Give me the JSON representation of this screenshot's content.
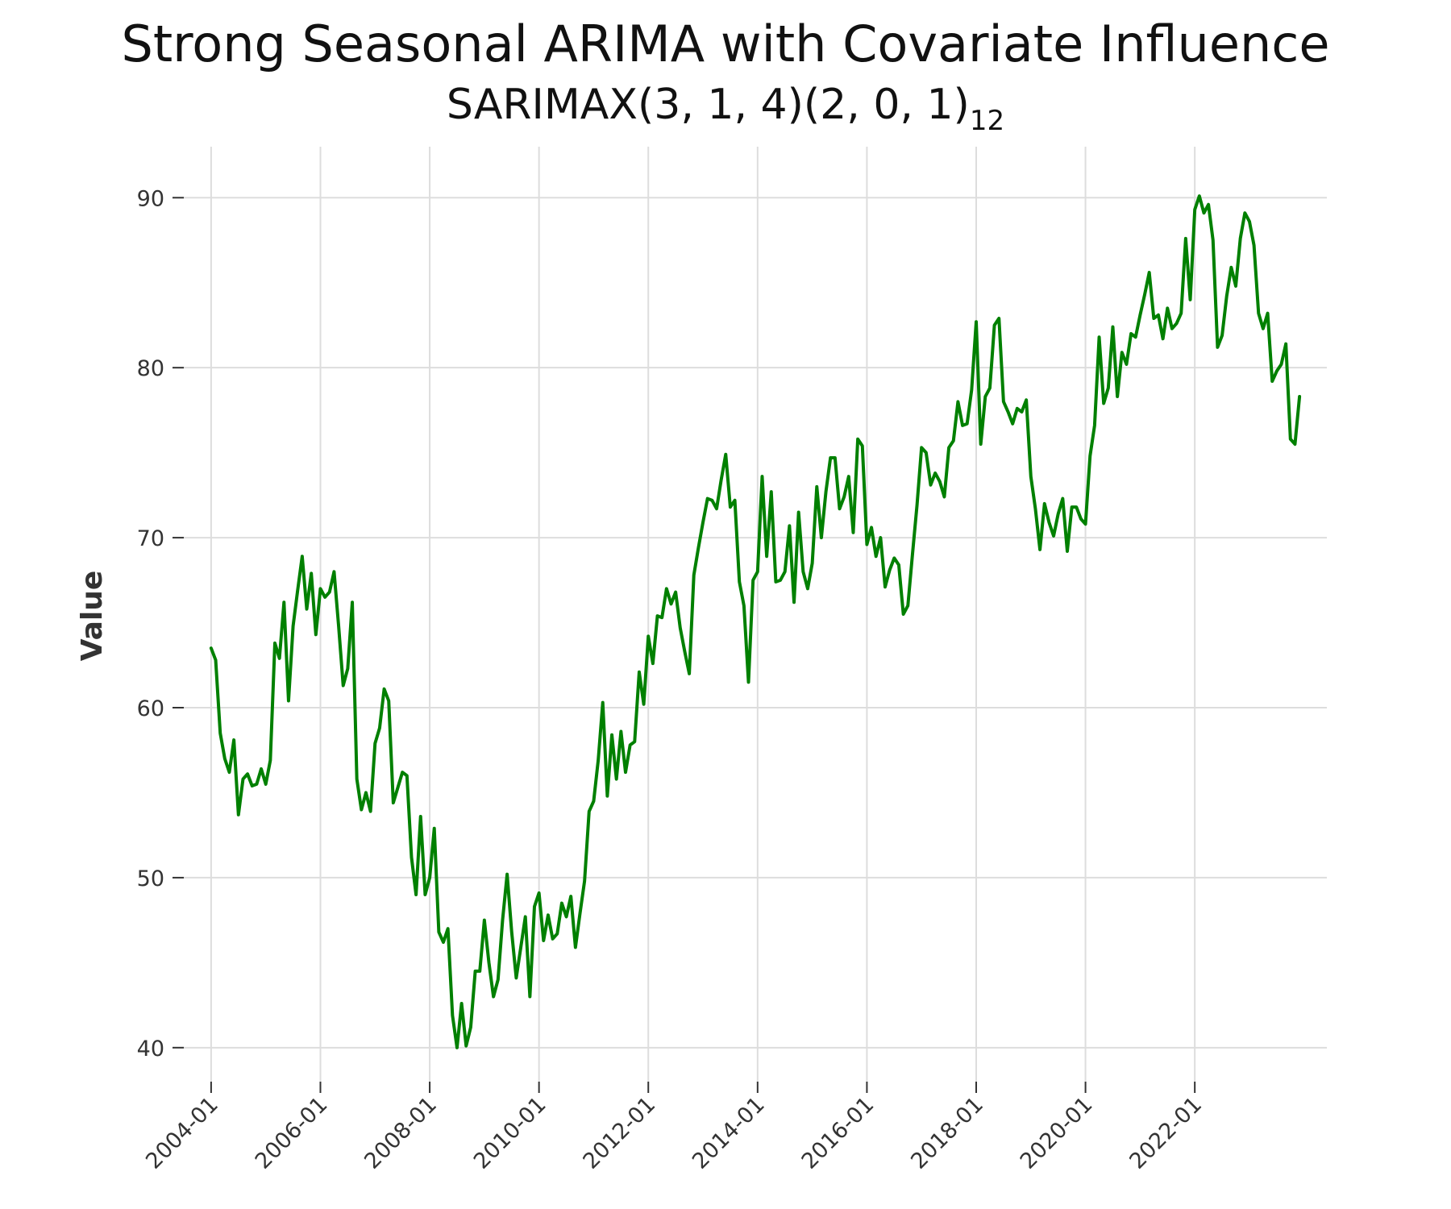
{
  "chart_data": {
    "type": "line",
    "title": "Strong Seasonal ARIMA with Covariate Influence",
    "subtitle_main": "SARIMAX(3, 1, 4)(2, 0, 1)",
    "subtitle_sub": "12",
    "xlabel": "",
    "ylabel": "Value",
    "ylim": [
      38,
      93
    ],
    "xlim": [
      "2003-07",
      "2024-06"
    ],
    "grid": true,
    "line_color": "#008000",
    "yticks": [
      40,
      50,
      60,
      70,
      80,
      90
    ],
    "xticks": [
      "2004-01",
      "2006-01",
      "2008-01",
      "2010-01",
      "2012-01",
      "2014-01",
      "2016-01",
      "2018-01",
      "2020-01",
      "2022-01"
    ],
    "x_start": "2004-01",
    "x_freq": "monthly",
    "series": [
      {
        "values": [
          63.5,
          62.8,
          58.5,
          57.0,
          56.2,
          58.1,
          53.7,
          55.8,
          56.1,
          55.4,
          55.5,
          56.4,
          55.5,
          56.9,
          63.8,
          62.9,
          66.2,
          60.4,
          64.8,
          66.9,
          68.9,
          65.8,
          67.9,
          64.3,
          67.0,
          66.5,
          66.8,
          68.0,
          64.8,
          61.3,
          62.3,
          66.2,
          55.8,
          54.0,
          55.0,
          53.9,
          57.9,
          58.8,
          61.1,
          60.4,
          54.4,
          55.3,
          56.2,
          56.0,
          51.2,
          49.0,
          53.6,
          49.0,
          50.0,
          52.9,
          46.8,
          46.2,
          47.0,
          41.9,
          40.0,
          42.6,
          40.1,
          41.2,
          44.5,
          44.5,
          47.5,
          45.0,
          43.0,
          44.0,
          47.5,
          50.2,
          46.8,
          44.1,
          45.9,
          47.7,
          43.0,
          48.3,
          49.1,
          46.3,
          47.8,
          46.4,
          46.7,
          48.5,
          47.7,
          48.9,
          45.9,
          47.9,
          49.8,
          53.9,
          54.5,
          56.9,
          60.3,
          54.8,
          58.4,
          55.8,
          58.6,
          56.2,
          57.8,
          58.0,
          62.1,
          60.2,
          64.2,
          62.6,
          65.4,
          65.3,
          67.0,
          66.1,
          66.8,
          64.7,
          63.3,
          62.0,
          67.8,
          69.4,
          70.9,
          72.3,
          72.2,
          71.7,
          73.4,
          74.9,
          71.8,
          72.2,
          67.4,
          66.0,
          61.5,
          67.5,
          68.0,
          73.6,
          68.9,
          72.7,
          67.4,
          67.5,
          68.0,
          70.7,
          66.2,
          71.5,
          68.0,
          67.0,
          68.5,
          73.0,
          70.0,
          72.7,
          74.7,
          74.7,
          71.7,
          72.4,
          73.6,
          70.3,
          75.8,
          75.4,
          69.6,
          70.6,
          68.9,
          70.0,
          67.1,
          68.1,
          68.8,
          68.4,
          65.5,
          66.0,
          69.0,
          71.9,
          75.3,
          75.0,
          73.1,
          73.8,
          73.3,
          72.4,
          75.3,
          75.7,
          78.0,
          76.6,
          76.7,
          78.7,
          82.7,
          75.5,
          78.3,
          78.8,
          82.5,
          82.9,
          78.0,
          77.4,
          76.7,
          77.6,
          77.4,
          78.1,
          73.6,
          71.7,
          69.3,
          72.0,
          70.9,
          70.1,
          71.4,
          72.3,
          69.2,
          71.8,
          71.8,
          71.1,
          70.8,
          74.8,
          76.6,
          81.8,
          77.9,
          78.8,
          82.4,
          78.3,
          80.9,
          80.2,
          82.0,
          81.8,
          83.1,
          84.3,
          85.6,
          82.9,
          83.1,
          81.7,
          83.5,
          82.3,
          82.6,
          83.2,
          87.6,
          84.0,
          89.3,
          90.1,
          89.1,
          89.6,
          87.5,
          81.2,
          81.9,
          84.2,
          85.9,
          84.8,
          87.6,
          89.1,
          88.6,
          87.2,
          83.2,
          82.3,
          83.2,
          79.2,
          79.8,
          80.2,
          81.4,
          75.8,
          75.5,
          78.3
        ]
      }
    ]
  }
}
